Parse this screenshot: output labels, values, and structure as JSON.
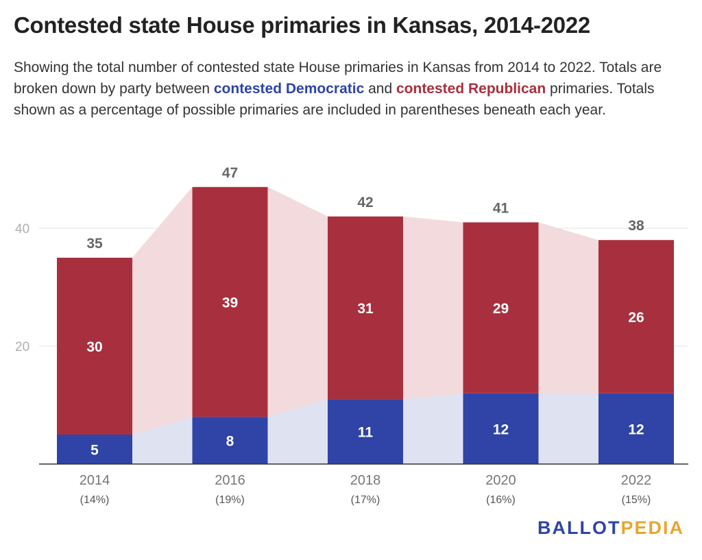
{
  "header": {
    "title": "Contested state House primaries in Kansas, 2014-2022",
    "subtitle_part1": "Showing the total number of contested state House primaries in Kansas from 2014 to 2022. Totals are broken down by party between ",
    "dem_label": "contested Democratic",
    "subtitle_and": " and ",
    "rep_label": "contested Republican",
    "subtitle_part2": " primaries. Totals shown as a percentage of possible primaries are included in parentheses beneath each year."
  },
  "colors": {
    "democratic": "#2f44a6",
    "republican": "#a8303e",
    "dem_area": "#dfe2f1",
    "rep_area": "#f3dadc",
    "grid": "#e2e2e2",
    "axis_text": "#999999"
  },
  "chart_data": {
    "type": "bar",
    "stacked": true,
    "categories": [
      "2014",
      "2016",
      "2018",
      "2020",
      "2022"
    ],
    "percent_labels": [
      "(14%)",
      "(19%)",
      "(17%)",
      "(16%)",
      "(15%)"
    ],
    "series": [
      {
        "name": "contested Democratic",
        "values": [
          5,
          8,
          11,
          12,
          12
        ]
      },
      {
        "name": "contested Republican",
        "values": [
          30,
          39,
          31,
          29,
          26
        ]
      }
    ],
    "totals": [
      35,
      47,
      42,
      41,
      38
    ],
    "yticks": [
      20,
      40
    ],
    "ylim": [
      0,
      50
    ],
    "grid": true
  },
  "logo": {
    "part1": "BALLOT",
    "part2": "PEDIA"
  }
}
